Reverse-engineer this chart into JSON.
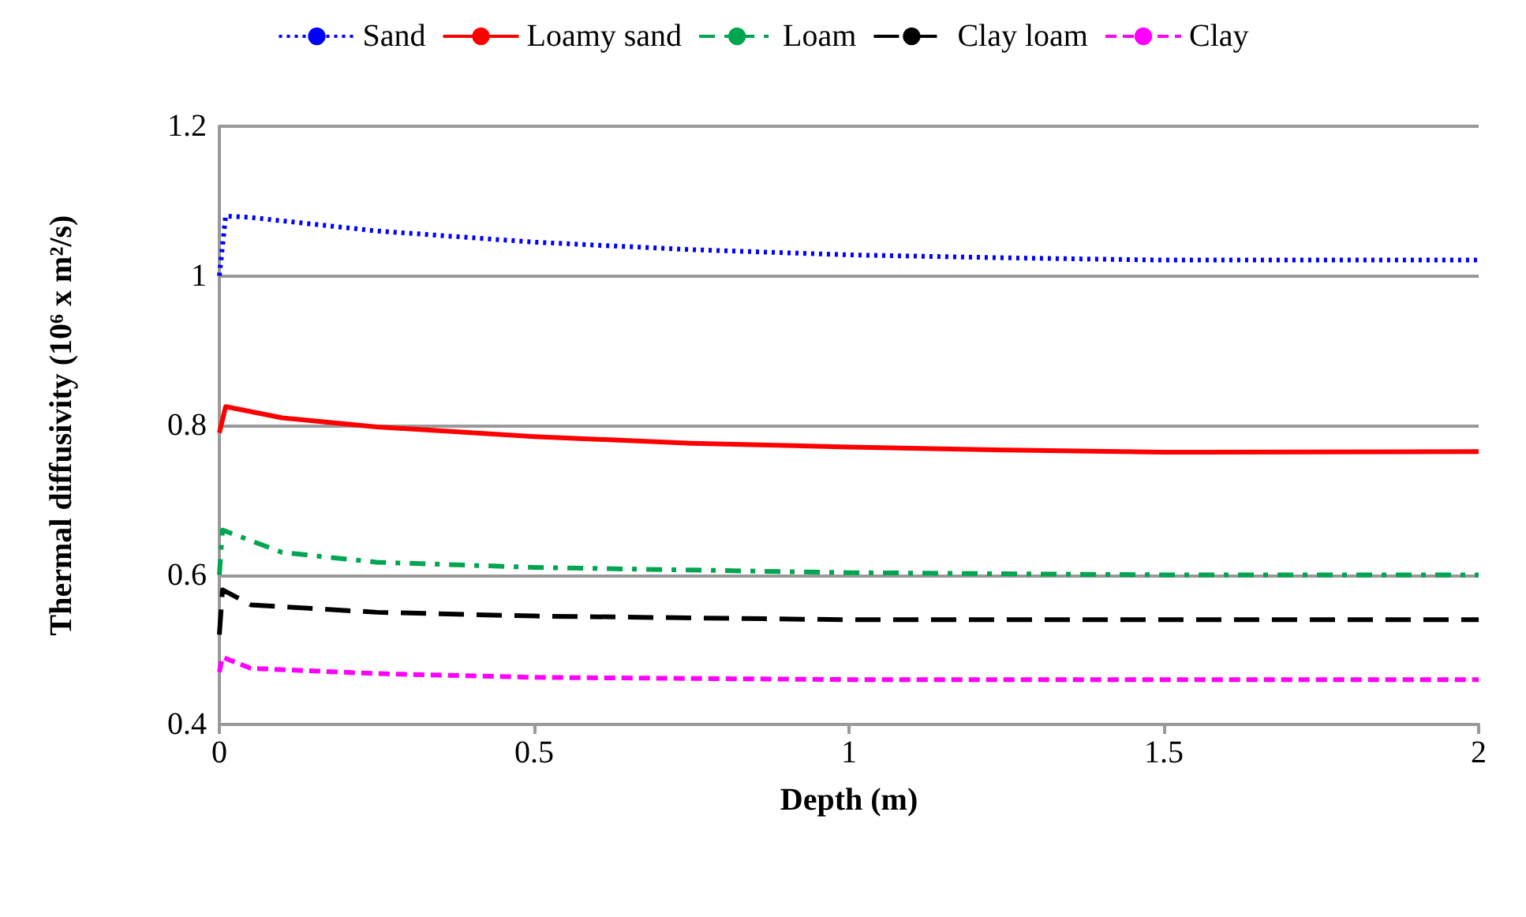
{
  "chart_data": {
    "type": "line",
    "xlabel": "Depth (m)",
    "ylabel": "Thermal diffusivity (10⁶ x m²/s)",
    "xlim": [
      0,
      2
    ],
    "xticks": [
      0,
      0.5,
      1,
      1.5,
      2
    ],
    "ylim": [
      0.4,
      1.2
    ],
    "yticks": [
      0.4,
      0.6,
      0.8,
      1,
      1.2
    ],
    "grid": "y",
    "legend": "top",
    "marker": "none",
    "series": [
      {
        "name": "Sand",
        "color": "#0000ff",
        "line_style": "dotted",
        "x": [
          0,
          0.01,
          0.05,
          0.25,
          0.5,
          0.75,
          1,
          1.25,
          1.5,
          2
        ],
        "values": [
          1.0,
          1.08,
          1.078,
          1.06,
          1.045,
          1.035,
          1.028,
          1.024,
          1.021,
          1.021
        ]
      },
      {
        "name": "Loamy sand",
        "color": "#ff0000",
        "line_style": "solid",
        "x": [
          0,
          0.01,
          0.1,
          0.25,
          0.5,
          0.75,
          1,
          1.25,
          1.5,
          2
        ],
        "values": [
          0.79,
          0.825,
          0.81,
          0.798,
          0.785,
          0.776,
          0.771,
          0.767,
          0.764,
          0.765
        ]
      },
      {
        "name": "Loam",
        "color": "#00a550",
        "line_style": "dashdot",
        "x": [
          0,
          0.005,
          0.1,
          0.25,
          0.5,
          1,
          1.5,
          2
        ],
        "values": [
          0.6,
          0.66,
          0.63,
          0.617,
          0.61,
          0.603,
          0.6,
          0.6
        ]
      },
      {
        "name": "Clay loam",
        "color": "#000000",
        "line_style": "dashed",
        "x": [
          0,
          0.005,
          0.05,
          0.25,
          0.5,
          1,
          2
        ],
        "values": [
          0.52,
          0.58,
          0.56,
          0.55,
          0.545,
          0.54,
          0.54
        ]
      },
      {
        "name": "Clay",
        "color": "#ff00ff",
        "line_style": "dashed-short",
        "x": [
          0,
          0.005,
          0.05,
          0.25,
          0.5,
          1,
          2
        ],
        "values": [
          0.47,
          0.49,
          0.475,
          0.468,
          0.463,
          0.46,
          0.46
        ]
      }
    ]
  }
}
